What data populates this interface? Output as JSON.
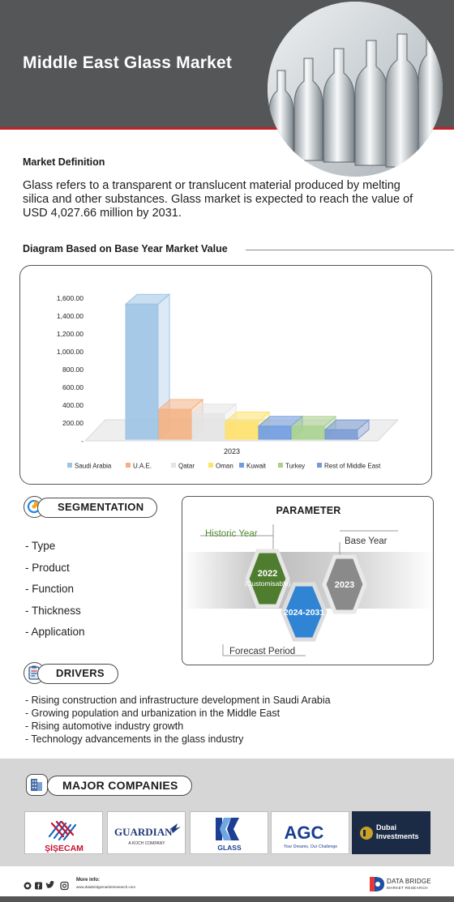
{
  "header": {
    "title": "Middle East Glass Market"
  },
  "definition": {
    "heading": "Market Definition",
    "text": "Glass refers to a transparent or translucent material produced by melting silica and other substances. Glass market is expected to reach the value of USD 4,027.66 million by 2031."
  },
  "diagram": {
    "heading": "Diagram Based on Base Year Market Value"
  },
  "chart_data": {
    "type": "bar",
    "categories": [
      "2023"
    ],
    "series": [
      {
        "name": "Saudi Arabia",
        "values": [
          1480
        ],
        "color": "#9dc3e6"
      },
      {
        "name": "U.A.E.",
        "values": [
          300
        ],
        "color": "#f4b183"
      },
      {
        "name": "Qatar",
        "values": [
          250
        ],
        "color": "#e4e4e4"
      },
      {
        "name": "Oman",
        "values": [
          160
        ],
        "color": "#ffe26a"
      },
      {
        "name": "Kuwait",
        "values": [
          110
        ],
        "color": "#6f9be0"
      },
      {
        "name": "Turkey",
        "values": [
          110
        ],
        "color": "#a9d18e"
      },
      {
        "name": "Rest of Middle East",
        "values": [
          70
        ],
        "color": "#7899d4"
      }
    ],
    "yticks": [
      "-",
      "200.00",
      "400.00",
      "600.00",
      "800.00",
      "1,000.00",
      "1,200.00",
      "1,400.00",
      "1,600.00"
    ],
    "ylim": [
      0,
      1600
    ],
    "legend": "bottom"
  },
  "segmentation": {
    "label": "SEGMENTATION",
    "items": [
      "Type",
      "Product",
      "Function",
      "Thickness",
      "Application"
    ]
  },
  "parameter": {
    "title": "PARAMETER",
    "historic_label": "Historic Year",
    "historic_value": "2022",
    "historic_sub": "(Customisable)",
    "forecast_value": "2024-2031",
    "forecast_label": "Forecast Period",
    "base_label": "Base Year",
    "base_value": "2023"
  },
  "drivers": {
    "label": "DRIVERS",
    "items": [
      "Rising construction and infrastructure development in Saudi Arabia",
      "Growing population and urbanization in the Middle East",
      "Rising automotive industry growth",
      "Technology advancements in the glass industry"
    ]
  },
  "companies": {
    "label": "MAJOR COMPANIES",
    "logos": [
      {
        "name": "ŞİŞECAM",
        "color": "#c8102e"
      },
      {
        "name": "GUARDIAN",
        "sub": "A KOCH COMPANY",
        "color": "#1f3a7a"
      },
      {
        "name": "GLASS",
        "color": "#1c3f94"
      },
      {
        "name": "AGC",
        "sub": "Your Dreams, Our Challenge",
        "color": "#1a3e8f"
      },
      {
        "name": "Dubai Investments",
        "color": "#ffffff"
      }
    ]
  },
  "footer": {
    "more_info": "More info:",
    "url": "www.databridgemarketresearch.com",
    "brand": "DATA BRIDGE",
    "brand_sub": "MARKET RESEARCH",
    "icons": [
      "whatsapp-icon",
      "facebook-icon",
      "twitter-icon",
      "instagram-icon"
    ]
  }
}
